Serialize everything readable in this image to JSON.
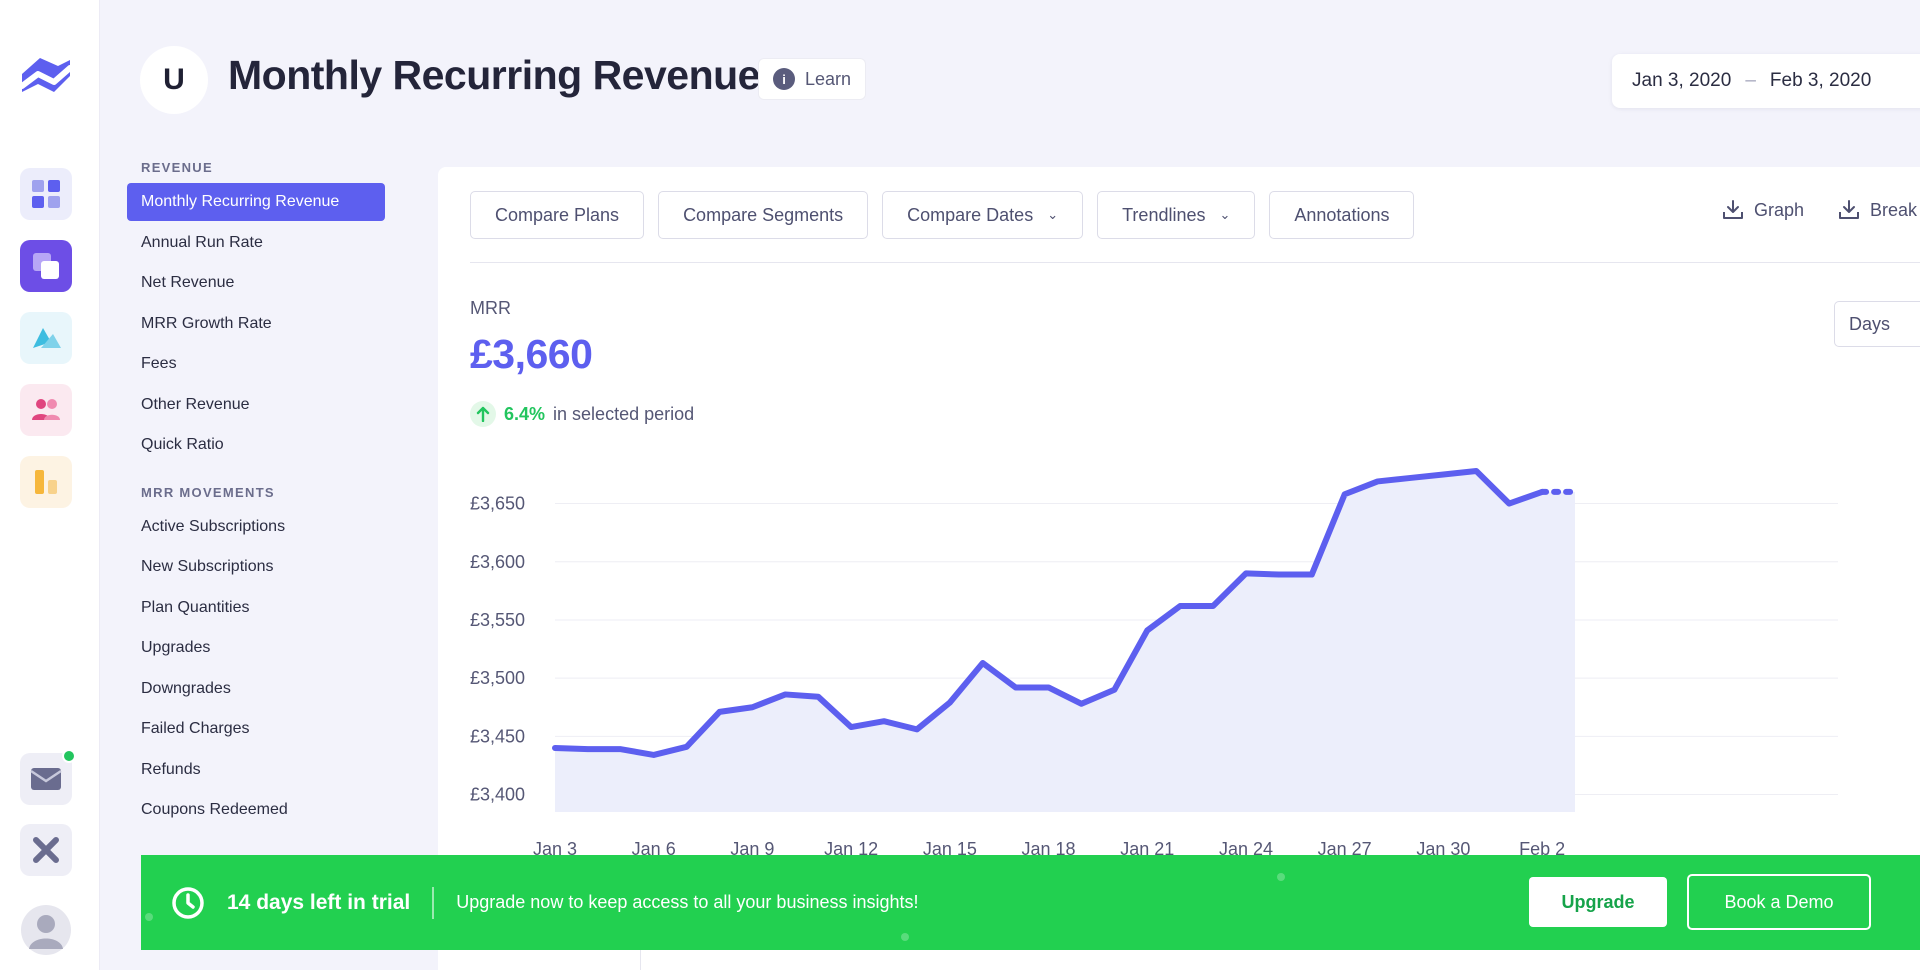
{
  "header": {
    "avatar_letter": "U",
    "title": "Monthly Recurring Revenue",
    "learn_label": "Learn",
    "learn_icon": "info-icon",
    "date_start": "Jan 3, 2020",
    "date_separator": "–",
    "date_end": "Feb 3, 2020"
  },
  "rail": {
    "icons": [
      "logo-icon",
      "dashboard-icon",
      "revenue-icon",
      "analytics-icon",
      "customers-icon",
      "reports-icon",
      "mail-icon",
      "tools-icon",
      "user-avatar-icon"
    ],
    "mail_notification": true
  },
  "subnav": {
    "revenue_section": "REVENUE",
    "revenue_items": [
      "Monthly Recurring Revenue",
      "Annual Run Rate",
      "Net Revenue",
      "MRR Growth Rate",
      "Fees",
      "Other Revenue",
      "Quick Ratio"
    ],
    "movements_section": "MRR MOVEMENTS",
    "movement_items": [
      "Active Subscriptions",
      "New Subscriptions",
      "Plan Quantities",
      "Upgrades",
      "Downgrades",
      "Failed Charges",
      "Refunds",
      "Coupons Redeemed"
    ]
  },
  "toolbar": {
    "compare_plans": "Compare Plans",
    "compare_segments": "Compare Segments",
    "compare_dates": "Compare Dates",
    "trendlines": "Trendlines",
    "annotations": "Annotations",
    "export_graph": "Graph",
    "export_breakdown": "Break"
  },
  "metric": {
    "label": "MRR",
    "value": "£3,660",
    "change_pct": "6.4%",
    "change_text": "in selected period",
    "interval": "Days"
  },
  "colors": {
    "accent": "#5d5fef",
    "positive": "#22c55e",
    "banner": "#22d050"
  },
  "chart_data": {
    "type": "area",
    "x": [
      "Jan 3",
      "Jan 4",
      "Jan 5",
      "Jan 6",
      "Jan 7",
      "Jan 8",
      "Jan 9",
      "Jan 10",
      "Jan 11",
      "Jan 12",
      "Jan 13",
      "Jan 14",
      "Jan 15",
      "Jan 16",
      "Jan 17",
      "Jan 18",
      "Jan 19",
      "Jan 20",
      "Jan 21",
      "Jan 22",
      "Jan 23",
      "Jan 24",
      "Jan 25",
      "Jan 26",
      "Jan 27",
      "Jan 28",
      "Jan 29",
      "Jan 30",
      "Jan 31",
      "Feb 1",
      "Feb 2",
      "Feb 3"
    ],
    "values": [
      3440,
      3439,
      3439,
      3434,
      3441,
      3471,
      3475,
      3486,
      3484,
      3458,
      3463,
      3456,
      3479,
      3513,
      3492,
      3492,
      3478,
      3490,
      3541,
      3562,
      3562,
      3590,
      3589,
      3589,
      3658,
      3669,
      3672,
      3675,
      3678,
      3650,
      3660,
      3660
    ],
    "projected_from_index": 30,
    "xticks": [
      "Jan 3",
      "Jan 6",
      "Jan 9",
      "Jan 12",
      "Jan 15",
      "Jan 18",
      "Jan 21",
      "Jan 24",
      "Jan 27",
      "Jan 30",
      "Feb 2"
    ],
    "yticks": [
      "£3,400",
      "£3,450",
      "£3,500",
      "£3,550",
      "£3,600",
      "£3,650"
    ],
    "ytick_values": [
      3400,
      3450,
      3500,
      3550,
      3600,
      3650
    ],
    "ylim": [
      3385,
      3690
    ],
    "grid": true,
    "legend": "none"
  },
  "banner": {
    "trial_text": "14 days left in trial",
    "message": "Upgrade now to keep access to all your business insights!",
    "upgrade_label": "Upgrade",
    "demo_label": "Book a Demo"
  }
}
